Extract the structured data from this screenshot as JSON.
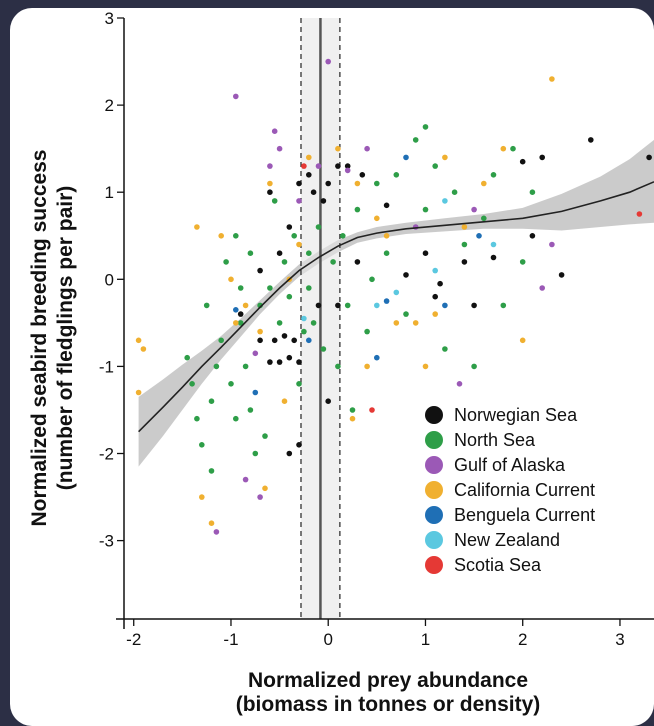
{
  "chart_data": {
    "type": "scatter",
    "xlabel": [
      "Normalized prey abundance",
      "(biomass in tonnes or density)"
    ],
    "ylabel": [
      "Normalized seabird breeding success",
      "(number of fledglings per pair)"
    ],
    "xlim": [
      -2.1,
      3.35
    ],
    "ylim": [
      -3.9,
      3.0
    ],
    "xticks": [
      "-2",
      "-1",
      "0",
      "1",
      "2",
      "3"
    ],
    "yticks": [
      "3",
      "2",
      "1",
      "0",
      "-1",
      "-2",
      "-3"
    ],
    "legend_position": "bottom-right",
    "series": [
      {
        "name": "Norwegian Sea",
        "color": "#111111",
        "points": [
          [
            -0.6,
            -0.95
          ],
          [
            -0.5,
            -0.95
          ],
          [
            -0.4,
            -0.9
          ],
          [
            -0.3,
            -0.95
          ],
          [
            -0.7,
            -0.7
          ],
          [
            -0.55,
            -0.7
          ],
          [
            -0.45,
            -0.65
          ],
          [
            -0.35,
            -0.7
          ],
          [
            -0.3,
            -1.9
          ],
          [
            -0.4,
            -2.0
          ],
          [
            -0.3,
            1.1
          ],
          [
            -0.2,
            1.2
          ],
          [
            -0.15,
            1.0
          ],
          [
            0.0,
            1.1
          ],
          [
            0.1,
            1.3
          ],
          [
            0.2,
            1.3
          ],
          [
            0.35,
            1.2
          ],
          [
            -0.05,
            0.9
          ],
          [
            -0.1,
            -0.3
          ],
          [
            0.1,
            -0.3
          ],
          [
            0.0,
            -1.4
          ],
          [
            0.6,
            0.85
          ],
          [
            0.8,
            0.05
          ],
          [
            1.0,
            0.3
          ],
          [
            1.1,
            -0.2
          ],
          [
            1.15,
            -0.05
          ],
          [
            1.4,
            0.2
          ],
          [
            1.5,
            -0.3
          ],
          [
            1.7,
            0.25
          ],
          [
            2.0,
            1.35
          ],
          [
            2.2,
            1.4
          ],
          [
            2.1,
            0.5
          ],
          [
            2.4,
            0.05
          ],
          [
            2.7,
            1.6
          ],
          [
            3.3,
            1.4
          ],
          [
            -0.6,
            1.0
          ],
          [
            -0.7,
            0.1
          ],
          [
            -0.9,
            -0.4
          ],
          [
            -0.5,
            0.3
          ],
          [
            -0.4,
            0.6
          ],
          [
            0.3,
            0.2
          ]
        ]
      },
      {
        "name": "North Sea",
        "color": "#2e9e48",
        "points": [
          [
            -1.4,
            -1.2
          ],
          [
            -1.35,
            -1.6
          ],
          [
            -1.3,
            -1.9
          ],
          [
            -1.2,
            -1.4
          ],
          [
            -1.15,
            -1.0
          ],
          [
            -1.1,
            -0.7
          ],
          [
            -1.0,
            -1.2
          ],
          [
            -0.95,
            -1.6
          ],
          [
            -0.9,
            -0.5
          ],
          [
            -0.85,
            -1.0
          ],
          [
            -0.8,
            -1.5
          ],
          [
            -0.75,
            -2.0
          ],
          [
            -1.25,
            -0.3
          ],
          [
            -1.05,
            0.2
          ],
          [
            -0.95,
            0.5
          ],
          [
            -0.9,
            -0.1
          ],
          [
            -0.8,
            0.3
          ],
          [
            -0.7,
            -0.3
          ],
          [
            -0.6,
            -0.1
          ],
          [
            -0.5,
            -0.5
          ],
          [
            -0.45,
            0.2
          ],
          [
            -0.4,
            -0.2
          ],
          [
            -0.35,
            0.5
          ],
          [
            -0.3,
            -1.2
          ],
          [
            -0.25,
            -0.6
          ],
          [
            -0.2,
            0.3
          ],
          [
            -0.15,
            -0.5
          ],
          [
            -0.1,
            0.6
          ],
          [
            -0.05,
            -0.8
          ],
          [
            0.05,
            0.2
          ],
          [
            0.1,
            -1.0
          ],
          [
            0.15,
            0.5
          ],
          [
            0.2,
            -0.3
          ],
          [
            0.3,
            0.8
          ],
          [
            0.4,
            -0.6
          ],
          [
            0.5,
            1.1
          ],
          [
            0.6,
            0.3
          ],
          [
            0.7,
            1.2
          ],
          [
            0.8,
            -0.4
          ],
          [
            0.9,
            1.6
          ],
          [
            1.0,
            0.8
          ],
          [
            1.1,
            1.3
          ],
          [
            1.2,
            -0.8
          ],
          [
            1.3,
            1.0
          ],
          [
            1.4,
            0.4
          ],
          [
            1.5,
            -1.0
          ],
          [
            1.6,
            0.7
          ],
          [
            1.7,
            1.2
          ],
          [
            1.8,
            -0.3
          ],
          [
            1.9,
            1.5
          ],
          [
            2.0,
            0.2
          ],
          [
            2.1,
            1.0
          ],
          [
            -1.45,
            -0.9
          ],
          [
            -1.2,
            -2.2
          ],
          [
            -0.65,
            -1.8
          ],
          [
            0.25,
            -1.5
          ],
          [
            1.0,
            1.75
          ],
          [
            -0.55,
            0.9
          ],
          [
            0.45,
            0.0
          ],
          [
            -0.2,
            -0.1
          ]
        ]
      },
      {
        "name": "Gulf of Alaska",
        "color": "#9b59b6",
        "points": [
          [
            -0.95,
            2.1
          ],
          [
            -0.55,
            1.7
          ],
          [
            -0.5,
            1.5
          ],
          [
            -0.6,
            1.3
          ],
          [
            -0.1,
            1.3
          ],
          [
            0.2,
            1.25
          ],
          [
            -0.3,
            0.9
          ],
          [
            0.4,
            1.5
          ],
          [
            1.35,
            -1.2
          ],
          [
            1.5,
            0.8
          ],
          [
            2.2,
            -0.1
          ],
          [
            2.3,
            0.4
          ],
          [
            -0.85,
            -2.3
          ],
          [
            -0.7,
            -2.5
          ],
          [
            -0.75,
            -0.85
          ],
          [
            -1.15,
            -2.9
          ],
          [
            0.0,
            2.5
          ],
          [
            0.9,
            0.6
          ]
        ]
      },
      {
        "name": "California Current",
        "color": "#f0b030",
        "points": [
          [
            -1.95,
            -0.7
          ],
          [
            -1.9,
            -0.8
          ],
          [
            -1.95,
            -1.3
          ],
          [
            -1.3,
            -2.5
          ],
          [
            -1.2,
            -2.8
          ],
          [
            -0.95,
            -0.5
          ],
          [
            -1.1,
            0.5
          ],
          [
            -1.0,
            0.0
          ],
          [
            -0.85,
            -0.3
          ],
          [
            -0.7,
            -0.6
          ],
          [
            -0.6,
            1.1
          ],
          [
            -0.4,
            0.0
          ],
          [
            -0.3,
            0.4
          ],
          [
            -0.2,
            1.4
          ],
          [
            0.1,
            1.5
          ],
          [
            0.3,
            1.1
          ],
          [
            0.5,
            0.7
          ],
          [
            0.7,
            -0.5
          ],
          [
            0.9,
            -0.5
          ],
          [
            1.0,
            -1.0
          ],
          [
            1.2,
            1.4
          ],
          [
            1.4,
            0.6
          ],
          [
            1.6,
            1.1
          ],
          [
            1.8,
            1.5
          ],
          [
            2.0,
            -0.7
          ],
          [
            2.3,
            2.3
          ],
          [
            0.25,
            -1.6
          ],
          [
            -0.65,
            -2.4
          ],
          [
            -0.45,
            -1.4
          ],
          [
            0.6,
            0.5
          ],
          [
            -1.35,
            0.6
          ],
          [
            1.1,
            -0.4
          ],
          [
            0.4,
            -1.0
          ]
        ]
      },
      {
        "name": "Benguela Current",
        "color": "#1f6fb5",
        "points": [
          [
            -0.2,
            -0.7
          ],
          [
            0.5,
            -0.9
          ],
          [
            0.8,
            1.4
          ],
          [
            1.2,
            -0.3
          ],
          [
            -0.75,
            -1.3
          ],
          [
            -0.95,
            -0.35
          ],
          [
            0.6,
            -0.25
          ],
          [
            1.55,
            0.5
          ]
        ]
      },
      {
        "name": "New Zealand",
        "color": "#5bc8e0",
        "points": [
          [
            0.5,
            -0.3
          ],
          [
            0.7,
            -0.15
          ],
          [
            1.1,
            0.1
          ],
          [
            1.2,
            0.9
          ],
          [
            1.7,
            0.4
          ],
          [
            -0.25,
            -0.45
          ]
        ]
      },
      {
        "name": "Scotia Sea",
        "color": "#e53935",
        "points": [
          [
            3.2,
            0.75
          ],
          [
            -0.25,
            1.3
          ],
          [
            0.45,
            -1.5
          ]
        ]
      }
    ],
    "fit_line": [
      [
        -1.95,
        -1.75
      ],
      [
        -1.7,
        -1.47
      ],
      [
        -1.5,
        -1.24
      ],
      [
        -1.3,
        -1.0
      ],
      [
        -1.1,
        -0.78
      ],
      [
        -0.9,
        -0.55
      ],
      [
        -0.7,
        -0.32
      ],
      [
        -0.5,
        -0.1
      ],
      [
        -0.3,
        0.1
      ],
      [
        -0.1,
        0.25
      ],
      [
        0.1,
        0.38
      ],
      [
        0.3,
        0.48
      ],
      [
        0.5,
        0.53
      ],
      [
        0.8,
        0.58
      ],
      [
        1.2,
        0.62
      ],
      [
        1.6,
        0.66
      ],
      [
        2.0,
        0.7
      ],
      [
        2.4,
        0.78
      ],
      [
        2.8,
        0.9
      ],
      [
        3.1,
        1.0
      ],
      [
        3.35,
        1.12
      ]
    ],
    "fit_band_upper": [
      [
        -1.95,
        -1.35
      ],
      [
        -1.7,
        -1.15
      ],
      [
        -1.5,
        -0.98
      ],
      [
        -1.3,
        -0.82
      ],
      [
        -1.1,
        -0.65
      ],
      [
        -0.9,
        -0.45
      ],
      [
        -0.7,
        -0.24
      ],
      [
        -0.5,
        -0.03
      ],
      [
        -0.3,
        0.17
      ],
      [
        -0.1,
        0.32
      ],
      [
        0.1,
        0.45
      ],
      [
        0.3,
        0.54
      ],
      [
        0.5,
        0.6
      ],
      [
        0.8,
        0.65
      ],
      [
        1.2,
        0.7
      ],
      [
        1.6,
        0.75
      ],
      [
        2.0,
        0.82
      ],
      [
        2.4,
        0.98
      ],
      [
        2.8,
        1.18
      ],
      [
        3.1,
        1.38
      ],
      [
        3.35,
        1.6
      ]
    ],
    "fit_band_lower": [
      [
        -1.95,
        -2.15
      ],
      [
        -1.7,
        -1.8
      ],
      [
        -1.5,
        -1.5
      ],
      [
        -1.3,
        -1.2
      ],
      [
        -1.1,
        -0.92
      ],
      [
        -0.9,
        -0.66
      ],
      [
        -0.7,
        -0.4
      ],
      [
        -0.5,
        -0.17
      ],
      [
        -0.3,
        0.03
      ],
      [
        -0.1,
        0.18
      ],
      [
        0.1,
        0.31
      ],
      [
        0.3,
        0.42
      ],
      [
        0.5,
        0.47
      ],
      [
        0.8,
        0.52
      ],
      [
        1.2,
        0.55
      ],
      [
        1.6,
        0.58
      ],
      [
        2.0,
        0.58
      ],
      [
        2.4,
        0.56
      ],
      [
        2.8,
        0.6
      ],
      [
        3.1,
        0.63
      ],
      [
        3.35,
        0.65
      ]
    ],
    "vertical_line_x": -0.08,
    "vertical_band": [
      -0.28,
      0.12
    ],
    "vertical_dashed_x": [
      -0.28,
      0.12
    ]
  }
}
